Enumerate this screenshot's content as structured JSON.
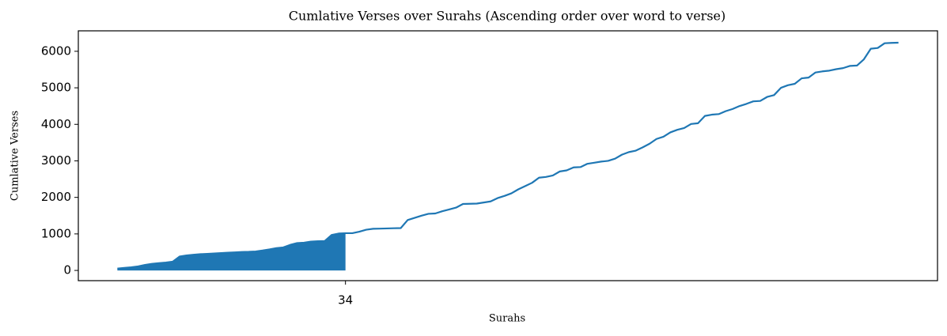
{
  "chart_data": {
    "type": "line",
    "title": "Cumlative Verses over Surahs (Ascending order over word to verse)",
    "x_label": "Surahs",
    "y_label": "Cumlative Verses",
    "x": [
      1,
      2,
      3,
      4,
      5,
      6,
      7,
      8,
      9,
      10,
      11,
      12,
      13,
      14,
      15,
      16,
      17,
      18,
      19,
      20,
      21,
      22,
      23,
      24,
      25,
      26,
      27,
      28,
      29,
      30,
      31,
      32,
      33,
      34,
      35,
      36,
      37,
      38,
      39,
      40,
      41,
      42,
      43,
      44,
      45,
      46,
      47,
      48,
      49,
      50,
      51,
      52,
      53,
      54,
      55,
      56,
      57,
      58,
      59,
      60,
      61,
      62,
      63,
      64,
      65,
      66,
      67,
      68,
      69,
      70,
      71,
      72,
      73,
      74,
      75,
      76,
      77,
      78,
      79,
      80,
      81,
      82,
      83,
      84,
      85,
      86,
      87,
      88,
      89,
      90,
      91,
      92,
      93,
      94,
      95,
      96,
      97,
      98,
      99,
      100,
      101,
      102,
      103,
      104,
      105,
      106,
      107,
      108,
      109,
      110,
      111,
      112,
      113,
      114
    ],
    "values": [
      50,
      70,
      85,
      110,
      150,
      180,
      200,
      215,
      240,
      380,
      410,
      430,
      445,
      455,
      465,
      475,
      485,
      495,
      505,
      510,
      520,
      545,
      575,
      610,
      630,
      700,
      750,
      760,
      790,
      800,
      805,
      970,
      1010,
      1020,
      1020,
      1060,
      1115,
      1140,
      1145,
      1150,
      1155,
      1160,
      1380,
      1440,
      1500,
      1550,
      1560,
      1620,
      1670,
      1720,
      1820,
      1825,
      1830,
      1860,
      1890,
      1980,
      2040,
      2110,
      2220,
      2310,
      2400,
      2540,
      2560,
      2600,
      2710,
      2740,
      2820,
      2830,
      2920,
      2950,
      2980,
      3000,
      3060,
      3170,
      3240,
      3280,
      3370,
      3470,
      3600,
      3660,
      3780,
      3850,
      3900,
      4010,
      4030,
      4230,
      4265,
      4280,
      4360,
      4420,
      4500,
      4560,
      4630,
      4640,
      4750,
      4800,
      5000,
      5070,
      5110,
      5260,
      5280,
      5420,
      5450,
      5470,
      5510,
      5540,
      5600,
      5610,
      5780,
      6070,
      6090,
      6220,
      6230,
      6236
    ],
    "color": "#1f77b4",
    "fill_to": 34,
    "xlim": [
      -4.65,
      119.65
    ],
    "xticks": [
      34
    ],
    "ylim": [
      -280,
      6560
    ],
    "yticks": [
      0,
      1000,
      2000,
      3000,
      4000,
      5000,
      6000
    ]
  }
}
